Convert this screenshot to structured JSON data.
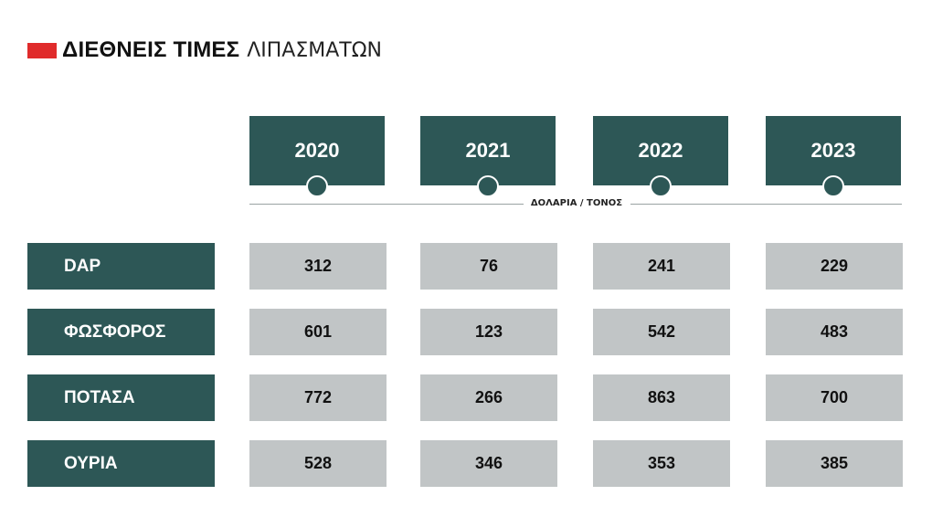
{
  "title": {
    "bold": "ΔΙΕΘΝΕΙΣ ΤΙΜΕΣ",
    "light": "ΛΙΠΑΣΜΑΤΩΝ",
    "accent_color": "#e02b2b"
  },
  "unit_label": "ΔΟΛΑΡΙΑ / ΤΟΝΟΣ",
  "colors": {
    "header_fill": "#2d5756",
    "cell_fill": "#c1c5c6"
  },
  "chart_data": {
    "type": "table",
    "title": "ΔΙΕΘΝΕΙΣ ΤΙΜΕΣ ΛΙΠΑΣΜΑΤΩΝ",
    "unit": "ΔΟΛΑΡΙΑ / ΤΟΝΟΣ",
    "columns": [
      "2020",
      "2021",
      "2022",
      "2023"
    ],
    "rows": [
      {
        "label": "DAP",
        "values": [
          "312",
          "76",
          "241",
          "229"
        ]
      },
      {
        "label": "ΦΩΣΦΟΡΟΣ",
        "values": [
          "601",
          "123",
          "542",
          "483"
        ]
      },
      {
        "label": "ΠΟΤΑΣΑ",
        "values": [
          "772",
          "266",
          "863",
          "700"
        ]
      },
      {
        "label": "ΟΥΡΙΑ",
        "values": [
          "528",
          "346",
          "353",
          "385"
        ]
      }
    ]
  }
}
